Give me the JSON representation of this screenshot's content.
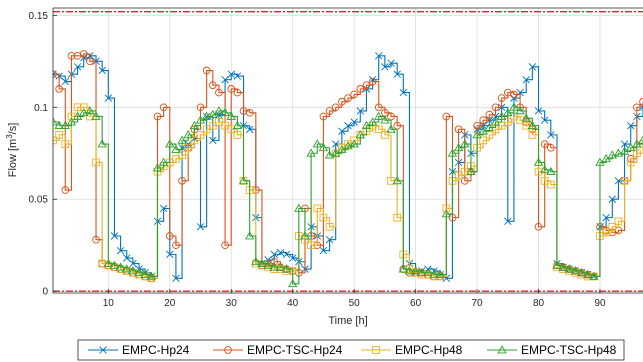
{
  "chart_data": {
    "type": "line",
    "xlabel": "Time [h]",
    "ylabel_parts": {
      "pre": "Flow [m",
      "sup": "3",
      "post": "/s]"
    },
    "xlim": [
      1,
      97
    ],
    "ylim": [
      -0.001,
      0.154
    ],
    "x_ticks": [
      10,
      20,
      30,
      40,
      50,
      60,
      70,
      80,
      90
    ],
    "x_tick_labels": [
      "10",
      "20",
      "30",
      "40",
      "50",
      "60",
      "70",
      "80",
      "90"
    ],
    "y_ticks": [
      0,
      0.05,
      0.1,
      0.15
    ],
    "y_tick_labels": [
      "0",
      "0.05",
      "0.1",
      "0.15"
    ],
    "grid": true,
    "step_plot": true,
    "reference_lines": [
      {
        "y": 0.152,
        "color": "#d62728",
        "style": "dash-dot"
      },
      {
        "y": 0.0,
        "color": "#d62728",
        "style": "dash-dot"
      }
    ],
    "legend_position": "bottom",
    "series": [
      {
        "name": "EMPC-Hp24",
        "color": "#0072bd",
        "marker": "x",
        "x": [
          1,
          2,
          3,
          4,
          5,
          6,
          7,
          8,
          9,
          10,
          11,
          12,
          13,
          14,
          15,
          16,
          17,
          18,
          19,
          20,
          21,
          22,
          23,
          24,
          25,
          26,
          27,
          28,
          29,
          30,
          31,
          32,
          33,
          34,
          35,
          36,
          37,
          38,
          39,
          40,
          41,
          42,
          43,
          44,
          45,
          46,
          47,
          48,
          49,
          50,
          51,
          52,
          53,
          54,
          55,
          56,
          57,
          58,
          59,
          60,
          61,
          62,
          63,
          64,
          65,
          66,
          67,
          68,
          69,
          70,
          71,
          72,
          73,
          74,
          75,
          76,
          77,
          78,
          79,
          80,
          81,
          82,
          83,
          84,
          85,
          86,
          87,
          88,
          89,
          90,
          91,
          92,
          93,
          94,
          95,
          96,
          97
        ],
        "y": [
          0.118,
          0.117,
          0.114,
          0.118,
          0.122,
          0.127,
          0.128,
          0.125,
          0.12,
          0.105,
          0.03,
          0.022,
          0.018,
          0.015,
          0.012,
          0.01,
          0.008,
          0.038,
          0.045,
          0.02,
          0.007,
          0.078,
          0.08,
          0.083,
          0.035,
          0.095,
          0.082,
          0.096,
          0.115,
          0.118,
          0.117,
          0.09,
          0.088,
          0.04,
          0.015,
          0.017,
          0.02,
          0.021,
          0.02,
          0.018,
          0.016,
          0.012,
          0.035,
          0.03,
          0.022,
          0.028,
          0.08,
          0.087,
          0.09,
          0.092,
          0.098,
          0.11,
          0.115,
          0.128,
          0.122,
          0.124,
          0.118,
          0.108,
          0.015,
          0.01,
          0.011,
          0.012,
          0.011,
          0.009,
          0.007,
          0.065,
          0.07,
          0.085,
          0.075,
          0.088,
          0.09,
          0.093,
          0.095,
          0.1,
          0.038,
          0.105,
          0.108,
          0.115,
          0.122,
          0.098,
          0.093,
          0.085,
          0.015,
          0.013,
          0.012,
          0.011,
          0.01,
          0.009,
          0.008,
          0.035,
          0.04,
          0.05,
          0.06,
          0.08,
          0.09,
          0.095,
          0.1
        ]
      },
      {
        "name": "EMPC-TSC-Hp24",
        "color": "#d95319",
        "marker": "o",
        "x": [
          1,
          2,
          3,
          4,
          5,
          6,
          7,
          8,
          9,
          10,
          11,
          12,
          13,
          14,
          15,
          16,
          17,
          18,
          19,
          20,
          21,
          22,
          23,
          24,
          25,
          26,
          27,
          28,
          29,
          30,
          31,
          32,
          33,
          34,
          35,
          36,
          37,
          38,
          39,
          40,
          41,
          42,
          43,
          44,
          45,
          46,
          47,
          48,
          49,
          50,
          51,
          52,
          53,
          54,
          55,
          56,
          57,
          58,
          59,
          60,
          61,
          62,
          63,
          64,
          65,
          66,
          67,
          68,
          69,
          70,
          71,
          72,
          73,
          74,
          75,
          76,
          77,
          78,
          79,
          80,
          81,
          82,
          83,
          84,
          85,
          86,
          87,
          88,
          89,
          90,
          91,
          92,
          93,
          94,
          95,
          96,
          97
        ],
        "y": [
          0.118,
          0.11,
          0.055,
          0.128,
          0.128,
          0.129,
          0.125,
          0.028,
          0.015,
          0.014,
          0.013,
          0.012,
          0.011,
          0.01,
          0.009,
          0.008,
          0.007,
          0.095,
          0.1,
          0.03,
          0.025,
          0.06,
          0.078,
          0.088,
          0.1,
          0.12,
          0.112,
          0.108,
          0.025,
          0.11,
          0.108,
          0.098,
          0.097,
          0.055,
          0.014,
          0.015,
          0.016,
          0.013,
          0.012,
          0.011,
          0.01,
          0.045,
          0.03,
          0.025,
          0.095,
          0.098,
          0.1,
          0.103,
          0.105,
          0.107,
          0.11,
          0.112,
          0.114,
          0.1,
          0.097,
          0.095,
          0.09,
          0.012,
          0.01,
          0.01,
          0.01,
          0.009,
          0.008,
          0.008,
          0.095,
          0.04,
          0.088,
          0.06,
          0.065,
          0.09,
          0.093,
          0.096,
          0.1,
          0.105,
          0.108,
          0.107,
          0.1,
          0.092,
          0.088,
          0.035,
          0.08,
          0.078,
          0.014,
          0.013,
          0.012,
          0.011,
          0.01,
          0.009,
          0.008,
          0.035,
          0.033,
          0.032,
          0.033,
          0.06,
          0.072,
          0.1,
          0.103
        ]
      },
      {
        "name": "EMPC-Hp48",
        "color": "#edb120",
        "marker": "s",
        "x": [
          1,
          2,
          3,
          4,
          5,
          6,
          7,
          8,
          9,
          10,
          11,
          12,
          13,
          14,
          15,
          16,
          17,
          18,
          19,
          20,
          21,
          22,
          23,
          24,
          25,
          26,
          27,
          28,
          29,
          30,
          31,
          32,
          33,
          34,
          35,
          36,
          37,
          38,
          39,
          40,
          41,
          42,
          43,
          44,
          45,
          46,
          47,
          48,
          49,
          50,
          51,
          52,
          53,
          54,
          55,
          56,
          57,
          58,
          59,
          60,
          61,
          62,
          63,
          64,
          65,
          66,
          67,
          68,
          69,
          70,
          71,
          72,
          73,
          74,
          75,
          76,
          77,
          78,
          79,
          80,
          81,
          82,
          83,
          84,
          85,
          86,
          87,
          88,
          89,
          90,
          91,
          92,
          93,
          94,
          95,
          96,
          97
        ],
        "y": [
          0.082,
          0.085,
          0.08,
          0.095,
          0.1,
          0.1,
          0.095,
          0.07,
          0.015,
          0.014,
          0.013,
          0.012,
          0.011,
          0.01,
          0.009,
          0.008,
          0.007,
          0.065,
          0.068,
          0.07,
          0.072,
          0.074,
          0.078,
          0.082,
          0.085,
          0.088,
          0.09,
          0.092,
          0.09,
          0.088,
          0.085,
          0.06,
          0.055,
          0.015,
          0.014,
          0.013,
          0.012,
          0.012,
          0.011,
          0.011,
          0.03,
          0.028,
          0.025,
          0.045,
          0.04,
          0.035,
          0.075,
          0.078,
          0.08,
          0.082,
          0.085,
          0.087,
          0.09,
          0.088,
          0.085,
          0.06,
          0.04,
          0.02,
          0.012,
          0.01,
          0.009,
          0.009,
          0.008,
          0.008,
          0.045,
          0.06,
          0.063,
          0.065,
          0.068,
          0.078,
          0.082,
          0.085,
          0.088,
          0.09,
          0.092,
          0.095,
          0.093,
          0.09,
          0.085,
          0.065,
          0.06,
          0.058,
          0.013,
          0.012,
          0.011,
          0.01,
          0.009,
          0.008,
          0.008,
          0.03,
          0.032,
          0.035,
          0.038,
          0.06,
          0.07,
          0.075,
          0.08
        ]
      },
      {
        "name": "EMPC-TSC-Hp48",
        "color": "#2ca02c",
        "marker": "^",
        "x": [
          1,
          2,
          3,
          4,
          5,
          6,
          7,
          8,
          9,
          10,
          11,
          12,
          13,
          14,
          15,
          16,
          17,
          18,
          19,
          20,
          21,
          22,
          23,
          24,
          25,
          26,
          27,
          28,
          29,
          30,
          31,
          32,
          33,
          34,
          35,
          36,
          37,
          38,
          39,
          40,
          41,
          42,
          43,
          44,
          45,
          46,
          47,
          48,
          49,
          50,
          51,
          52,
          53,
          54,
          55,
          56,
          57,
          58,
          59,
          60,
          61,
          62,
          63,
          64,
          65,
          66,
          67,
          68,
          69,
          70,
          71,
          72,
          73,
          74,
          75,
          76,
          77,
          78,
          79,
          80,
          81,
          82,
          83,
          84,
          85,
          86,
          87,
          88,
          89,
          90,
          91,
          92,
          93,
          94,
          95,
          96,
          97
        ],
        "y": [
          0.092,
          0.09,
          0.09,
          0.092,
          0.095,
          0.097,
          0.098,
          0.095,
          0.08,
          0.015,
          0.014,
          0.013,
          0.012,
          0.011,
          0.01,
          0.009,
          0.008,
          0.067,
          0.07,
          0.08,
          0.077,
          0.082,
          0.085,
          0.09,
          0.093,
          0.095,
          0.096,
          0.098,
          0.097,
          0.095,
          0.09,
          0.06,
          0.03,
          0.016,
          0.015,
          0.014,
          0.013,
          0.013,
          0.012,
          0.004,
          0.045,
          0.03,
          0.075,
          0.08,
          0.078,
          0.074,
          0.075,
          0.077,
          0.079,
          0.08,
          0.085,
          0.09,
          0.092,
          0.095,
          0.093,
          0.088,
          0.06,
          0.012,
          0.011,
          0.011,
          0.01,
          0.01,
          0.009,
          0.009,
          0.042,
          0.075,
          0.078,
          0.08,
          0.065,
          0.085,
          0.087,
          0.089,
          0.092,
          0.095,
          0.097,
          0.1,
          0.098,
          0.094,
          0.09,
          0.07,
          0.066,
          0.065,
          0.014,
          0.013,
          0.012,
          0.011,
          0.01,
          0.009,
          0.008,
          0.07,
          0.072,
          0.074,
          0.075,
          0.076,
          0.078,
          0.08,
          0.082
        ]
      }
    ]
  }
}
